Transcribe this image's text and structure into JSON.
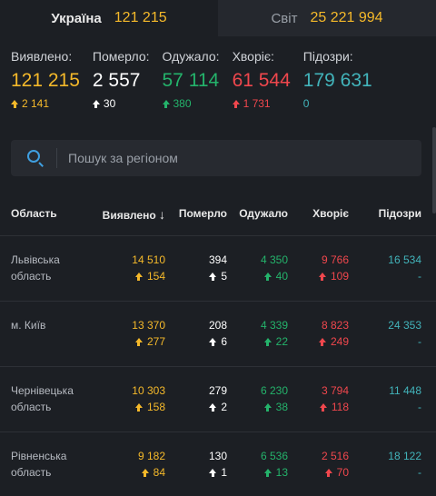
{
  "tabs": [
    {
      "label": "Україна",
      "count": "121 215",
      "active": true
    },
    {
      "label": "Світ",
      "count": "25 221 994",
      "active": false
    }
  ],
  "stats": [
    {
      "label": "Виявлено:",
      "value": "121 215",
      "delta": "2 141",
      "color": "yellow"
    },
    {
      "label": "Померло:",
      "value": "2 557",
      "delta": "30",
      "color": "white"
    },
    {
      "label": "Одужало:",
      "value": "57 114",
      "delta": "380",
      "color": "green"
    },
    {
      "label": "Хворіє:",
      "value": "61 544",
      "delta": "1 731",
      "color": "red"
    },
    {
      "label": "Підозри:",
      "value": "179 631",
      "delta": "0",
      "color": "teal"
    }
  ],
  "search": {
    "placeholder": "Пошук за регіоном"
  },
  "table": {
    "headers": {
      "region": "Область",
      "detected": "Виявлено",
      "sort_arrow": "↓",
      "dead": "Померло",
      "recovered": "Одужало",
      "sick": "Хворіє",
      "suspected": "Підозри"
    },
    "rows": [
      {
        "region": "Львівська область",
        "detected": "14 510",
        "detected_d": "154",
        "dead": "394",
        "dead_d": "5",
        "recovered": "4 350",
        "recovered_d": "40",
        "sick": "9 766",
        "sick_d": "109",
        "suspected": "16 534",
        "suspected_d": "-"
      },
      {
        "region": "м. Київ",
        "detected": "13 370",
        "detected_d": "277",
        "dead": "208",
        "dead_d": "6",
        "recovered": "4 339",
        "recovered_d": "22",
        "sick": "8 823",
        "sick_d": "249",
        "suspected": "24 353",
        "suspected_d": "-"
      },
      {
        "region": "Чернівецька область",
        "detected": "10 303",
        "detected_d": "158",
        "dead": "279",
        "dead_d": "2",
        "recovered": "6 230",
        "recovered_d": "38",
        "sick": "3 794",
        "sick_d": "118",
        "suspected": "11 448",
        "suspected_d": "-"
      },
      {
        "region": "Рівненська область",
        "detected": "9 182",
        "detected_d": "84",
        "dead": "130",
        "dead_d": "1",
        "recovered": "6 536",
        "recovered_d": "13",
        "sick": "2 516",
        "sick_d": "70",
        "suspected": "18 122",
        "suspected_d": "-"
      }
    ]
  },
  "colors": {
    "yellow": "#f5b92a",
    "white": "#ffffff",
    "green": "#24b36b",
    "red": "#f0474d",
    "teal": "#42b4bb",
    "background": "#1c1f24"
  }
}
